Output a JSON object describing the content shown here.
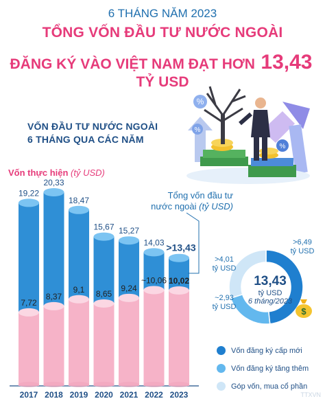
{
  "header": {
    "line1": "6 THÁNG NĂM 2023",
    "line2": "TỔNG VỐN ĐẦU TƯ NƯỚC NGOÀI",
    "line3_pre": "ĐĂNG KÝ VÀO VIỆT NAM ĐẠT HƠN",
    "line3_value": "13,43",
    "line3_unit": "TỶ USD"
  },
  "subtitle": {
    "line1": "VỐN ĐẦU TƯ NƯỚC NGOÀI",
    "line2": "6 THÁNG QUA CÁC NĂM"
  },
  "labels": {
    "realized_main": "Vốn thực hiện",
    "realized_unit": "(tỷ USD)",
    "total_line1": "Tổng vốn đầu tư",
    "total_line2_main": "nước ngoài",
    "total_line2_unit": "(tỷ USD)"
  },
  "chart_data": [
    {
      "type": "bar",
      "categories": [
        "2017",
        "2018",
        "2019",
        "2020",
        "2021",
        "2022",
        "2023"
      ],
      "series": [
        {
          "name": "Tổng vốn đầu tư nước ngoài",
          "values": [
            19.22,
            20.33,
            18.47,
            15.67,
            15.27,
            14.03,
            13.43
          ],
          "labels": [
            "19,22",
            "20,33",
            "18,47",
            "15,67",
            "15,27",
            "14,03",
            ">13,43"
          ],
          "color": "#2f8fd6"
        },
        {
          "name": "Vốn thực hiện",
          "values": [
            7.72,
            8.37,
            9.1,
            8.65,
            9.24,
            10.06,
            10.02
          ],
          "labels": [
            "7,72",
            "8,37",
            "9,1",
            "8,65",
            "9,24",
            "~10,06",
            "10,02"
          ],
          "color": "#f6b3c8"
        }
      ],
      "ylim": [
        0,
        20.33
      ]
    },
    {
      "type": "pie",
      "center_value": "13,43",
      "center_unit": "tỷ USD",
      "center_note": "6 tháng/2023",
      "slices": [
        {
          "name": "Vốn đăng ký cấp mới",
          "value": 6.49,
          "label": ">6,49",
          "unit": "tỷ USD",
          "color": "#1f7fcf"
        },
        {
          "name": "Vốn đăng ký tăng thêm",
          "value": 2.93,
          "label": "~2,93",
          "unit": "tỷ USD",
          "color": "#63b8ee"
        },
        {
          "name": "Góp vốn, mua cổ phần",
          "value": 4.01,
          "label": ">4,01",
          "unit": "tỷ USD",
          "color": "#cfe6f7"
        }
      ]
    }
  ],
  "watermark": "TTXVN"
}
